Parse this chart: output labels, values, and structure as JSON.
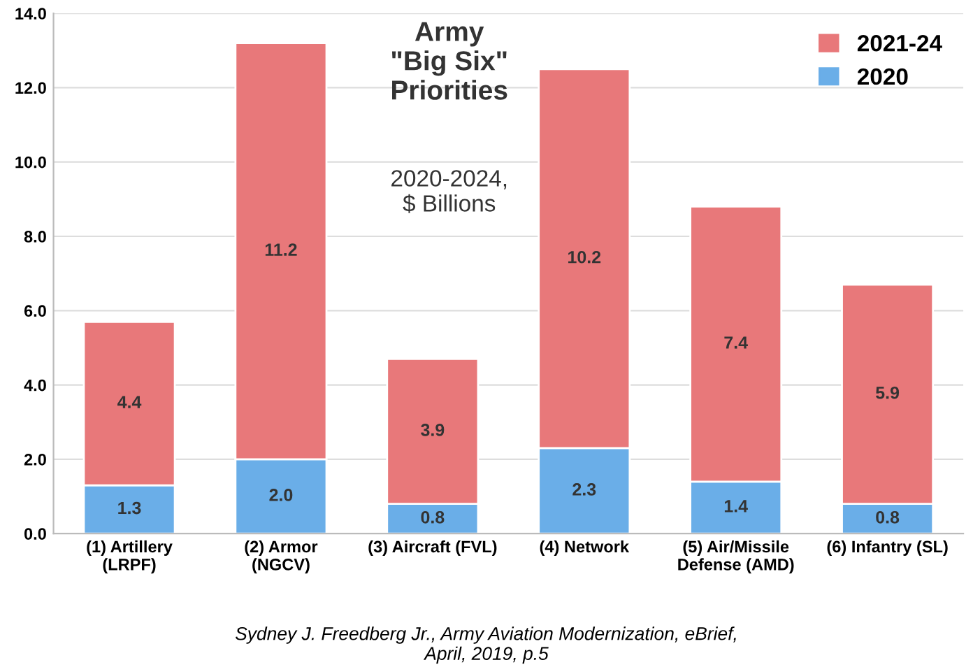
{
  "chart_data": {
    "type": "bar",
    "stacked": true,
    "title": "Army\n\"Big Six\"\nPriorities",
    "subtitle": "2020-2024,\n$ Billions",
    "categories": [
      "(1) Artillery\n(LRPF)",
      "(2) Armor\n(NGCV)",
      "(3) Aircraft (FVL)",
      "(4) Network",
      "(5) Air/Missile\nDefense (AMD)",
      "(6) Infantry (SL)"
    ],
    "series": [
      {
        "name": "2020",
        "color": "#6aaee8",
        "values": [
          1.3,
          2.0,
          0.8,
          2.3,
          1.4,
          0.8
        ],
        "value_labels": [
          "1.3",
          "2.0",
          "0.8",
          "2.3",
          "1.4",
          "0.8"
        ]
      },
      {
        "name": "2021-24",
        "color": "#e8787a",
        "values": [
          4.4,
          11.2,
          3.9,
          10.2,
          7.4,
          5.9
        ],
        "value_labels": [
          "4.4",
          "11.2",
          "3.9",
          "10.2",
          "7.4",
          "5.9"
        ]
      }
    ],
    "ylim": [
      0,
      14
    ],
    "yticks": [
      {
        "value": 0,
        "label": "0.0"
      },
      {
        "value": 2,
        "label": "2.0"
      },
      {
        "value": 4,
        "label": "4.0"
      },
      {
        "value": 6,
        "label": "6.0"
      },
      {
        "value": 8,
        "label": "8.0"
      },
      {
        "value": 10,
        "label": "10.0"
      },
      {
        "value": 12,
        "label": "12.0"
      },
      {
        "value": 14,
        "label": "14.0"
      }
    ],
    "grid": "y",
    "legend": "top right",
    "annotations": [
      "Sydney J. Freedberg Jr., Army Aviation Modernization, eBrief,\nApril, 2019, p.5"
    ]
  }
}
